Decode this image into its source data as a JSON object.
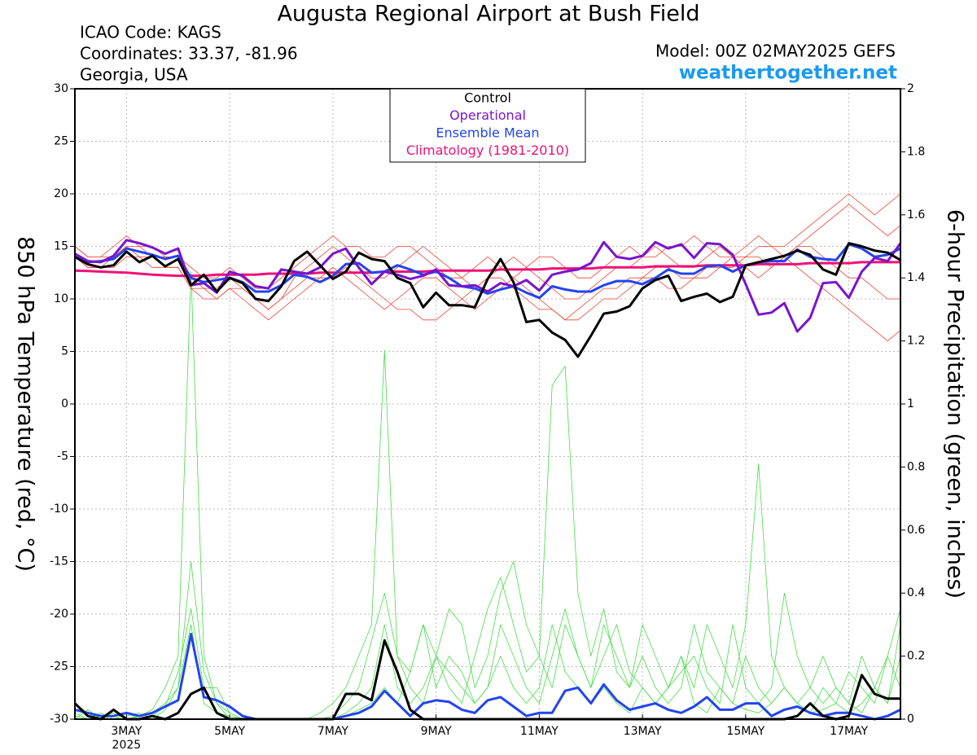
{
  "chart_data": {
    "type": "line",
    "title": "Augusta Regional Airport at Bush Field",
    "info": [
      "ICAO Code: KAGS",
      "Coordinates: 33.37, -81.96",
      "Georgia, USA"
    ],
    "model": "Model: 00Z 02MAY2025 GEFS",
    "site": "weathertogether.net",
    "ylabel": "850 hPa Temperature (red, °C)",
    "y2label": "6-hour Precipitation (green, inches)",
    "categories": [
      null,
      null,
      null,
      null,
      "3MAY",
      null,
      null,
      null,
      null,
      null,
      null,
      null,
      "5MAY",
      null,
      null,
      null,
      null,
      null,
      null,
      null,
      "7MAY",
      null,
      null,
      null,
      null,
      null,
      null,
      null,
      "9MAY",
      null,
      null,
      null,
      null,
      null,
      null,
      null,
      "11MAY",
      null,
      null,
      null,
      null,
      null,
      null,
      null,
      "13MAY",
      null,
      null,
      null,
      null,
      null,
      null,
      null,
      "15MAY",
      null,
      null,
      null,
      null,
      null,
      null,
      null,
      "17MAY",
      null,
      null,
      null,
      null
    ],
    "year_label": "2025",
    "ylim": [
      -30,
      30
    ],
    "yticks": [
      -30,
      -25,
      -20,
      -15,
      -10,
      -5,
      0,
      5,
      10,
      15,
      20,
      25,
      30
    ],
    "y2lim": [
      0,
      2
    ],
    "y2ticks": [
      0,
      0.2,
      0.4,
      0.6,
      0.8,
      1,
      1.2,
      1.4,
      1.6,
      1.8,
      2
    ],
    "grid": true,
    "legend": "top-center",
    "series": [
      {
        "color": "#44dd44",
        "axis": "y2",
        "values": [
          0.05,
          0.02,
          0,
          0,
          0.02,
          0.01,
          0.03,
          0.1,
          0.2,
          1.42,
          0.2,
          0.05,
          0.02,
          0,
          0,
          0,
          0,
          0,
          0,
          0,
          0,
          0.02,
          0.05,
          0.1,
          0.3,
          0.1,
          0.05,
          0.1,
          0.2,
          0.15,
          0.1,
          0.05,
          0.1,
          0.2,
          0.1,
          0.05,
          0.1,
          0.3,
          0.15,
          0.1,
          0.05,
          0.1,
          0.05,
          0.02,
          0.1,
          0.05,
          0.1,
          0.2,
          0.05,
          0.02,
          0.1,
          0.05,
          0.03,
          0.02,
          0.05,
          0.1,
          0.05,
          0.02,
          0.03,
          0.05,
          0.02,
          0.05,
          0.1,
          0.05,
          0.2
        ]
      },
      {
        "color": "#44dd44",
        "axis": "y2",
        "values": [
          0.02,
          0,
          0.01,
          0.02,
          0,
          0.01,
          0.02,
          0.05,
          0.1,
          0.5,
          0.15,
          0.05,
          0,
          0,
          0,
          0,
          0,
          0,
          0,
          0.02,
          0.05,
          0.1,
          0.2,
          0.3,
          1.17,
          0.2,
          0.1,
          0.05,
          0.2,
          0.35,
          0.3,
          0.1,
          0.2,
          0.4,
          0.5,
          0.3,
          0.2,
          0.1,
          0.3,
          0.2,
          0.1,
          0.3,
          0.2,
          0.1,
          0.2,
          0.1,
          0.05,
          0.1,
          0.3,
          0.15,
          0.1,
          0.05,
          0.2,
          0.1,
          0.05,
          0.1,
          0.05,
          0.02,
          0.1,
          0.05,
          0.15,
          0.1,
          0.05,
          0.2,
          0.1
        ]
      },
      {
        "color": "#44dd44",
        "axis": "y2",
        "values": [
          0,
          0.03,
          0,
          0.01,
          0.02,
          0,
          0.01,
          0.04,
          0.15,
          0.35,
          0.1,
          0.1,
          0.02,
          0,
          0,
          0,
          0,
          0,
          0,
          0,
          0.01,
          0.05,
          0.1,
          0.25,
          0.4,
          0.2,
          0.15,
          0.3,
          0.2,
          0.1,
          0.05,
          0.2,
          0.35,
          0.45,
          0.3,
          0.15,
          0.2,
          1.06,
          1.12,
          0.4,
          0.2,
          0.35,
          0.15,
          0.1,
          0.3,
          0.2,
          0.1,
          0.15,
          0.2,
          0.1,
          0.05,
          0.3,
          0.1,
          0.05,
          0.1,
          0.4,
          0.2,
          0.1,
          0.05,
          0.1,
          0.05,
          0.2,
          0.1,
          0.05,
          0.3
        ]
      },
      {
        "color": "#44dd44",
        "axis": "y2",
        "values": [
          0.01,
          0,
          0.02,
          0,
          0.01,
          0.02,
          0,
          0.03,
          0.1,
          0.3,
          0.05,
          0.02,
          0.01,
          0,
          0,
          0,
          0,
          0,
          0,
          0,
          0,
          0.01,
          0.03,
          0.05,
          0.1,
          0.05,
          0.15,
          0.3,
          0.1,
          0.2,
          0.15,
          0.05,
          0.1,
          0.3,
          0.2,
          0.1,
          0.05,
          0.2,
          0.35,
          0.2,
          0.1,
          0.2,
          0.3,
          0.15,
          0.1,
          0.05,
          0.1,
          0.2,
          0.1,
          0.3,
          0.2,
          0.1,
          0.3,
          0.81,
          0.2,
          0.1,
          0.05,
          0.1,
          0.2,
          0.1,
          0.05,
          0.02,
          0.1,
          0.2,
          0.35
        ]
      },
      {
        "color": "#f04030",
        "values": [
          15,
          14,
          14,
          14,
          15,
          15,
          14,
          14,
          14,
          12,
          11,
          11,
          12,
          11,
          10,
          9,
          10,
          12,
          13,
          14,
          15,
          14,
          13,
          12,
          12,
          13,
          14,
          15,
          14,
          13,
          12,
          11,
          12,
          13,
          14,
          13,
          12,
          11,
          10,
          10,
          11,
          12,
          13,
          13,
          14,
          15,
          14,
          13,
          13,
          14,
          15,
          14,
          13,
          12,
          13,
          14,
          15,
          16,
          17,
          18,
          19,
          18,
          17,
          16,
          17
        ]
      },
      {
        "color": "#f04030",
        "values": [
          14,
          13,
          13,
          14,
          15,
          14,
          14,
          13,
          13,
          11,
          10,
          10,
          11,
          10,
          9,
          8,
          9,
          10,
          11,
          12,
          13,
          12,
          11,
          10,
          9,
          10,
          11,
          12,
          12,
          11,
          10,
          9,
          10,
          11,
          12,
          11,
          10,
          9,
          8,
          9,
          10,
          11,
          11,
          12,
          12,
          13,
          13,
          12,
          12,
          13,
          13,
          14,
          14,
          15,
          15,
          14,
          13,
          12,
          11,
          10,
          9,
          8,
          7,
          6,
          7
        ]
      },
      {
        "color": "#f04030",
        "values": [
          15,
          14,
          14,
          15,
          16,
          15,
          15,
          14,
          14,
          13,
          12,
          12,
          13,
          12,
          11,
          11,
          12,
          13,
          14,
          15,
          16,
          15,
          15,
          14,
          14,
          15,
          15,
          14,
          13,
          12,
          12,
          13,
          14,
          13,
          12,
          13,
          14,
          14,
          13,
          12,
          12,
          13,
          14,
          15,
          14,
          14,
          15,
          15,
          16,
          15,
          14,
          14,
          15,
          16,
          15,
          15,
          16,
          17,
          18,
          19,
          20,
          19,
          18,
          19,
          20
        ]
      },
      {
        "color": "#f04030",
        "values": [
          14,
          13,
          13,
          13,
          14,
          14,
          13,
          13,
          13,
          11,
          11,
          10,
          11,
          11,
          10,
          9,
          10,
          11,
          12,
          12,
          12,
          13,
          12,
          11,
          10,
          9,
          9,
          8,
          8,
          9,
          10,
          11,
          12,
          12,
          11,
          10,
          9,
          9,
          8,
          8,
          9,
          10,
          10,
          11,
          12,
          12,
          11,
          11,
          12,
          12,
          13,
          13,
          14,
          14,
          13,
          14,
          15,
          15,
          14,
          13,
          12,
          12,
          11,
          10,
          10
        ]
      },
      {
        "color": "#2244ee",
        "axis": "y2",
        "values": [
          0.03,
          0.02,
          0.01,
          0.01,
          0.02,
          0.01,
          0.02,
          0.04,
          0.06,
          0.27,
          0.07,
          0.06,
          0.04,
          0.01,
          0,
          0,
          0,
          0,
          0,
          0,
          0,
          0.01,
          0.02,
          0.04,
          0.09,
          0.05,
          0.01,
          0.05,
          0.06,
          0.055,
          0.03,
          0.02,
          0.06,
          0.07,
          0.04,
          0.01,
          0.02,
          0.02,
          0.09,
          0.1,
          0.05,
          0.11,
          0.06,
          0.03,
          0.04,
          0.05,
          0.03,
          0.02,
          0.04,
          0.07,
          0.03,
          0.03,
          0.05,
          0.05,
          0.01,
          0.03,
          0.04,
          0.02,
          0.01,
          0.02,
          0.02,
          0.01,
          0,
          0.01,
          0.03
        ]
      },
      {
        "color": "#000000",
        "axis": "y2",
        "values": [
          0.05,
          0.01,
          0,
          0.03,
          0,
          0,
          0.01,
          0,
          0.02,
          0.08,
          0.1,
          0.02,
          0,
          0,
          0,
          0,
          0,
          0,
          0,
          0,
          0,
          0.08,
          0.08,
          0.06,
          0.25,
          0.15,
          0.03,
          0,
          0,
          0,
          0,
          0,
          0,
          0,
          0,
          0,
          0,
          0,
          0,
          0,
          0,
          0,
          0,
          0,
          0,
          0,
          0,
          0,
          0,
          0,
          0,
          0,
          0,
          0,
          0,
          0,
          0.01,
          0.05,
          0.01,
          0,
          0.01,
          0.14,
          0.08,
          0.065,
          0.065
        ]
      },
      {
        "name": "Climatology (1981-2010)",
        "color": "#ee1177",
        "values": [
          12.7,
          12.65,
          12.6,
          12.55,
          12.5,
          12.4,
          12.3,
          12.25,
          12.2,
          12.2,
          12.2,
          12.3,
          12.3,
          12.3,
          12.3,
          12.4,
          12.4,
          12.4,
          12.4,
          12.5,
          12.5,
          12.5,
          12.5,
          12.5,
          12.6,
          12.6,
          12.6,
          12.6,
          12.7,
          12.7,
          12.7,
          12.7,
          12.7,
          12.8,
          12.8,
          12.8,
          12.8,
          12.9,
          12.9,
          12.9,
          12.9,
          13.0,
          13.0,
          13.0,
          13.0,
          13.1,
          13.1,
          13.1,
          13.1,
          13.2,
          13.2,
          13.2,
          13.2,
          13.3,
          13.3,
          13.3,
          13.3,
          13.4,
          13.4,
          13.4,
          13.4,
          13.5,
          13.5,
          13.5,
          13.5
        ]
      },
      {
        "name": "Ensemble Mean",
        "color": "#2244ee",
        "values": [
          14.0,
          13.5,
          13.6,
          13.8,
          14.8,
          14.5,
          14.2,
          13.8,
          14.1,
          12.0,
          11.6,
          11.8,
          12.0,
          11.6,
          10.7,
          10.7,
          11.3,
          12.3,
          12.1,
          11.6,
          12.2,
          13.3,
          13.4,
          12.5,
          12.6,
          13.2,
          12.8,
          12.3,
          12.6,
          12.0,
          11.2,
          11.0,
          10.5,
          10.9,
          11.2,
          10.6,
          10.1,
          11.2,
          10.9,
          10.7,
          10.7,
          11.3,
          11.7,
          11.7,
          11.4,
          12.0,
          12.8,
          12.4,
          12.4,
          13.1,
          13.2,
          12.6,
          13.2,
          13.5,
          13.6,
          13.6,
          14.7,
          14.0,
          13.8,
          13.7,
          15.2,
          14.8,
          14.0,
          14.2,
          14.8
        ]
      },
      {
        "name": "Operational",
        "color": "#7a14cc",
        "values": [
          14.3,
          13.6,
          13.5,
          14.1,
          15.6,
          15.3,
          14.9,
          14.3,
          14.8,
          11.3,
          11.5,
          10.6,
          12.6,
          12.2,
          11.2,
          11.0,
          12.8,
          12.6,
          12.4,
          13.0,
          14.3,
          14.8,
          13.0,
          11.4,
          12.6,
          12.3,
          11.9,
          12.2,
          12.8,
          11.3,
          11.2,
          11.3,
          10.7,
          11.5,
          11.2,
          11.8,
          10.8,
          12.3,
          12.6,
          12.8,
          13.4,
          15.4,
          14.0,
          13.8,
          14.1,
          15.4,
          14.8,
          15.2,
          13.9,
          15.3,
          15.2,
          14.2,
          11.4,
          8.5,
          8.7,
          9.6,
          6.9,
          8.2,
          11.5,
          11.6,
          10.1,
          12.6,
          13.9,
          13.6,
          15.3
        ]
      },
      {
        "name": "Control",
        "color": "#000000",
        "values": [
          14.0,
          13.3,
          13.0,
          13.2,
          14.5,
          13.5,
          14.1,
          13.1,
          13.8,
          11.3,
          12.3,
          10.7,
          12.0,
          11.5,
          10.0,
          9.8,
          11.2,
          13.6,
          14.5,
          13.2,
          11.9,
          12.6,
          14.4,
          13.8,
          13.6,
          12.0,
          11.5,
          9.2,
          10.6,
          9.4,
          9.4,
          9.2,
          11.9,
          13.8,
          11.6,
          7.8,
          8.0,
          6.8,
          6.1,
          4.5,
          6.5,
          8.6,
          8.8,
          9.3,
          11.0,
          11.8,
          12.2,
          9.8,
          10.2,
          10.5,
          9.7,
          10.2,
          13.2,
          13.5,
          13.8,
          14.1,
          14.6,
          14.2,
          12.8,
          12.3,
          15.3,
          15.0,
          14.6,
          14.4,
          13.7
        ]
      }
    ]
  }
}
